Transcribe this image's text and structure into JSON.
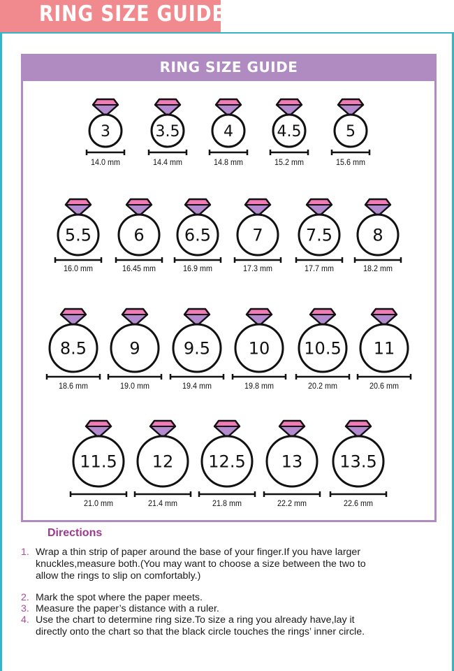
{
  "banner": {
    "title": "RING SIZE GUIDE"
  },
  "chart": {
    "title": "RING SIZE GUIDE",
    "rows": [
      [
        {
          "size": "3",
          "mm": "14.0 mm"
        },
        {
          "size": "3.5",
          "mm": "14.4 mm"
        },
        {
          "size": "4",
          "mm": "14.8 mm"
        },
        {
          "size": "4.5",
          "mm": "15.2 mm"
        },
        {
          "size": "5",
          "mm": "15.6 mm"
        }
      ],
      [
        {
          "size": "5.5",
          "mm": "16.0 mm"
        },
        {
          "size": "6",
          "mm": "16.45 mm"
        },
        {
          "size": "6.5",
          "mm": "16.9 mm"
        },
        {
          "size": "7",
          "mm": "17.3 mm"
        },
        {
          "size": "7.5",
          "mm": "17.7 mm"
        },
        {
          "size": "8",
          "mm": "18.2 mm"
        }
      ],
      [
        {
          "size": "8.5",
          "mm": "18.6 mm"
        },
        {
          "size": "9",
          "mm": "19.0 mm"
        },
        {
          "size": "9.5",
          "mm": "19.4 mm"
        },
        {
          "size": "10",
          "mm": "19.8 mm"
        },
        {
          "size": "10.5",
          "mm": "20.2 mm"
        },
        {
          "size": "11",
          "mm": "20.6 mm"
        }
      ],
      [
        {
          "size": "11.5",
          "mm": "21.0 mm"
        },
        {
          "size": "12",
          "mm": "21.4 mm"
        },
        {
          "size": "12.5",
          "mm": "21.8 mm"
        },
        {
          "size": "13",
          "mm": "22.2 mm"
        },
        {
          "size": "13.5",
          "mm": "22.6 mm"
        }
      ]
    ],
    "colors": {
      "gem_top": "#f27ab6",
      "gem_bottom": "#b58bd0",
      "ring": "#111111",
      "frame": "#b08bc2"
    }
  },
  "directions": {
    "title": "Directions",
    "steps": [
      {
        "num": "1.",
        "lines": [
          "Wrap a thin strip of paper around the base of your finger.If you have larger",
          "knuckles,measure both.(You may want to choose a size between the two to",
          "allow the rings to slip on comfortably.)"
        ]
      },
      {
        "num": "2.",
        "lines": [
          "Mark the spot where the paper meets."
        ]
      },
      {
        "num": "3.",
        "lines": [
          "Measure the paper’s distance with a ruler."
        ]
      },
      {
        "num": "4.",
        "lines": [
          "Use the chart to determine ring size.To size a ring you already have,lay it",
          "directly onto the chart so that the black circle touches the rings’ inner circle."
        ]
      }
    ]
  }
}
